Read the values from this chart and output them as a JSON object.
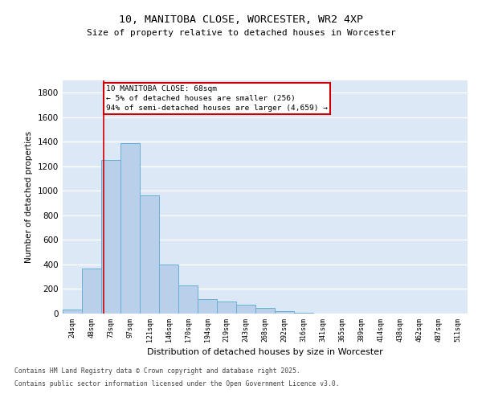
{
  "title1": "10, MANITOBA CLOSE, WORCESTER, WR2 4XP",
  "title2": "Size of property relative to detached houses in Worcester",
  "xlabel": "Distribution of detached houses by size in Worcester",
  "ylabel": "Number of detached properties",
  "categories": [
    "24sqm",
    "48sqm",
    "73sqm",
    "97sqm",
    "121sqm",
    "146sqm",
    "170sqm",
    "194sqm",
    "219sqm",
    "243sqm",
    "268sqm",
    "292sqm",
    "316sqm",
    "341sqm",
    "365sqm",
    "389sqm",
    "414sqm",
    "438sqm",
    "462sqm",
    "487sqm",
    "511sqm"
  ],
  "values": [
    30,
    370,
    1250,
    1390,
    960,
    400,
    230,
    120,
    100,
    75,
    45,
    20,
    5,
    0,
    0,
    0,
    0,
    0,
    0,
    0,
    0
  ],
  "bar_color": "#b8d0ea",
  "bar_edgecolor": "#6aaed6",
  "bg_color": "#dce8f5",
  "annotation_text": "10 MANITOBA CLOSE: 68sqm\n← 5% of detached houses are smaller (256)\n94% of semi-detached houses are larger (4,659) →",
  "annotation_box_color": "#ffffff",
  "annotation_box_edgecolor": "#cc0000",
  "red_line_index": 1.62,
  "ylim": [
    0,
    1900
  ],
  "yticks": [
    0,
    200,
    400,
    600,
    800,
    1000,
    1200,
    1400,
    1600,
    1800
  ],
  "footer1": "Contains HM Land Registry data © Crown copyright and database right 2025.",
  "footer2": "Contains public sector information licensed under the Open Government Licence v3.0."
}
